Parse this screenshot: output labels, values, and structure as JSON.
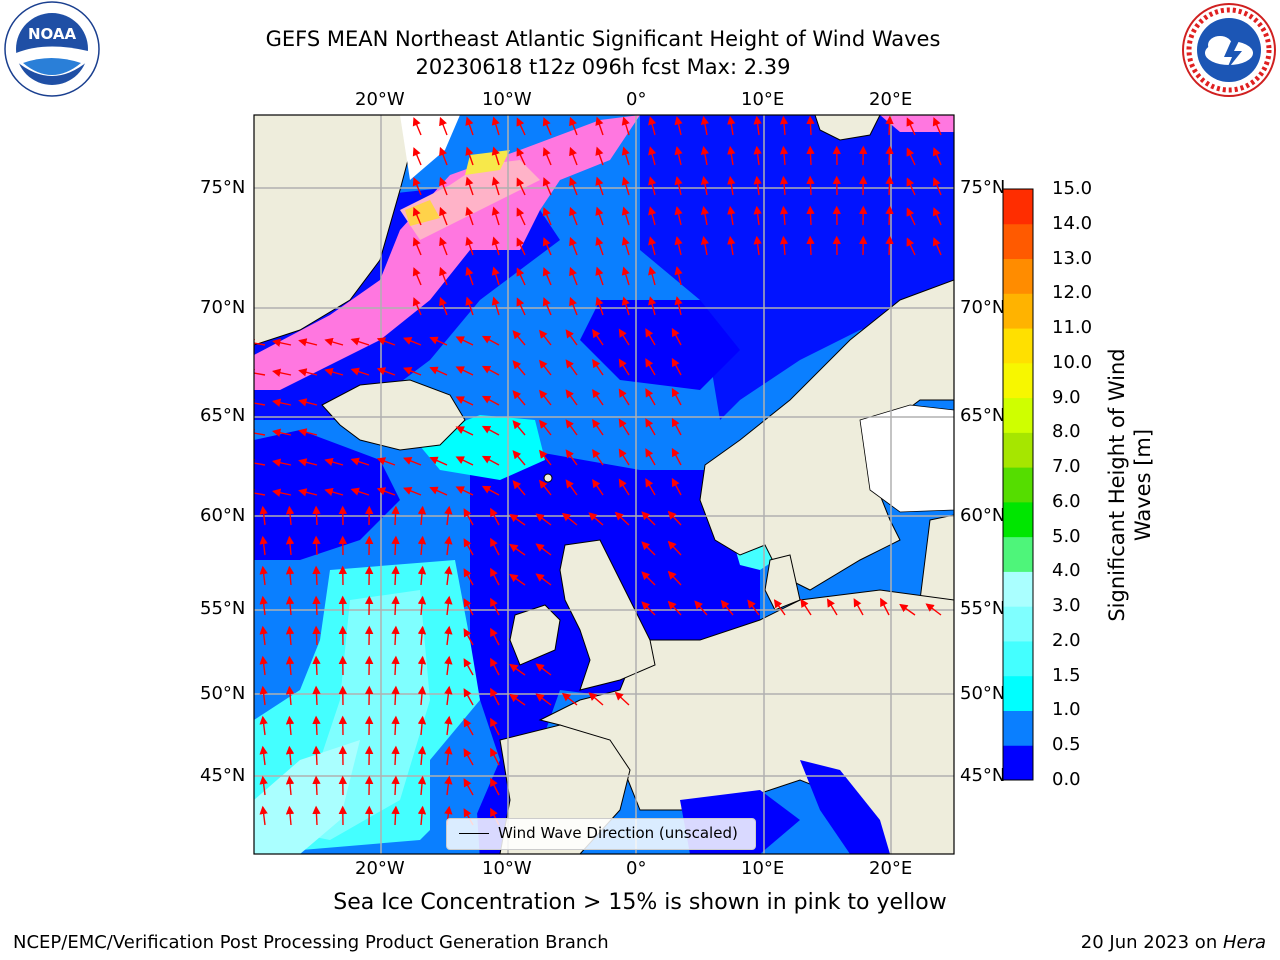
{
  "title": {
    "line1": "GEFS MEAN Northeast Atlantic Significant Height of Wind Waves",
    "line2": "20230618 t12z 096h fcst   Max: 2.39"
  },
  "logos": {
    "noara": "NOAA",
    "noaa_ring": "NATIONAL OCEANIC AND ATMOSPHERIC ADMINISTRATION · U.S. DEPARTMENT OF COMMERCE",
    "nws_ring": "NATIONAL WEATHER SERVICE"
  },
  "map": {
    "x_ticks": [
      "20°W",
      "10°W",
      "0°",
      "10°E",
      "20°E"
    ],
    "y_ticks": [
      "75°N",
      "70°N",
      "65°N",
      "60°N",
      "55°N",
      "50°N",
      "45°N"
    ],
    "ocean_color": "#0000ff",
    "land_color": "#eeeddc",
    "arrow_color": "#ff0000",
    "legend_label": "Wind Wave Direction (unscaled)"
  },
  "colorbar": {
    "title_line1": "Significant Height of Wind",
    "title_line2": "Waves [m]",
    "levels": [
      "0.0",
      "0.5",
      "1.0",
      "1.5",
      "2.0",
      "3.0",
      "4.0",
      "5.0",
      "6.0",
      "7.0",
      "8.0",
      "9.0",
      "10.0",
      "11.0",
      "12.0",
      "13.0",
      "14.0",
      "15.0"
    ],
    "colors": [
      "#0000ff",
      "#0a7fff",
      "#00ffff",
      "#44ffff",
      "#7fffff",
      "#aaffff",
      "#4ef57a",
      "#00e600",
      "#55dd00",
      "#a6e600",
      "#cfff00",
      "#f7f700",
      "#ffe000",
      "#ffb300",
      "#ff8c00",
      "#ff5a00",
      "#ff2d00"
    ]
  },
  "note": "Sea Ice Concentration > 15% is shown in pink to yellow",
  "footer": {
    "left": "NCEP/EMC/Verification Post Processing Product Generation Branch",
    "right_prefix": "20 Jun 2023 on ",
    "right_machine": "Hera"
  }
}
